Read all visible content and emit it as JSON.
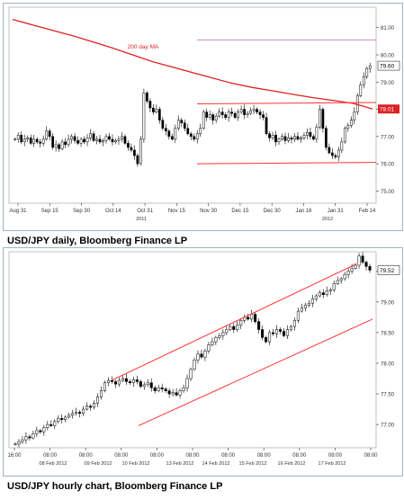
{
  "captions": {
    "daily": "USD/JPY daily, Bloomberg Finance LP",
    "hourly": "USD/JPY hourly chart, Bloomberg Finance LP"
  },
  "colors": {
    "candle": "#000000",
    "ma": "#dd2222",
    "trendline": "#ff3333",
    "resistance": "#cc88cc",
    "last_tag": "#dd2222",
    "frame": "#9fb2c8",
    "grid": "#cccccc"
  },
  "chart_data": [
    {
      "type": "candlestick",
      "title": "",
      "x_tick_labels": [
        "Aug 31",
        "Sep 15",
        "Sep 30",
        "Oct 14",
        "Oct 31",
        "Nov 15",
        "Nov 30",
        "Dec 15",
        "Dec 30",
        "Jan 16",
        "Jan 31",
        "Feb 14"
      ],
      "x_sublabels": [
        "2011",
        "2012"
      ],
      "y_tick_labels": [
        "75.00",
        "76.00",
        "77.00",
        "78.00",
        "79.00",
        "80.00",
        "81.00"
      ],
      "ylim": [
        74.55,
        81.75
      ],
      "last_value_label": "79.60",
      "ma_value_label": "78.01",
      "annotation": "200 day MA",
      "series": [
        {
          "name": "200 day MA",
          "x": [
            0,
            10,
            20,
            30,
            40,
            50,
            60,
            70,
            80,
            90,
            100,
            110,
            120,
            130,
            140,
            150,
            160,
            170,
            175,
            180
          ],
          "values": [
            81.3,
            81.1,
            80.9,
            80.7,
            80.48,
            80.25,
            80.0,
            79.75,
            79.55,
            79.35,
            79.15,
            78.95,
            78.8,
            78.68,
            78.55,
            78.43,
            78.33,
            78.22,
            78.12,
            78.01
          ]
        }
      ],
      "candles_close": [
        76.9,
        77.05,
        76.8,
        76.9,
        76.95,
        76.75,
        76.9,
        76.8,
        76.75,
        76.9,
        77.2,
        77.0,
        76.6,
        76.7,
        76.55,
        76.8,
        76.7,
        76.9,
        77.0,
        76.85,
        76.75,
        76.9,
        76.8,
        76.95,
        77.1,
        76.85,
        76.9,
        76.8,
        76.85,
        77.0,
        76.9,
        76.8,
        76.85,
        76.9,
        77.0,
        76.75,
        76.6,
        76.5,
        76.3,
        76.0,
        76.9,
        78.6,
        78.3,
        78.05,
        77.9,
        78.0,
        77.6,
        77.3,
        77.2,
        77.0,
        76.9,
        77.3,
        77.6,
        77.5,
        77.3,
        77.1,
        77.0,
        76.9,
        77.1,
        77.3,
        77.9,
        77.7,
        77.8,
        77.6,
        77.75,
        77.9,
        77.8,
        77.7,
        77.9,
        77.85,
        77.7,
        77.9,
        78.0,
        77.8,
        77.85,
        77.95,
        78.0,
        77.9,
        77.8,
        77.7,
        77.1,
        76.95,
        77.05,
        76.8,
        76.9,
        77.0,
        76.85,
        76.95,
        76.9,
        77.0,
        76.9,
        76.95,
        77.05,
        77.15,
        77.0,
        76.9,
        77.35,
        78.0,
        77.3,
        76.6,
        76.4,
        76.3,
        76.25,
        76.5,
        76.8,
        77.3,
        77.4,
        77.6,
        77.9,
        78.5,
        78.9,
        79.2,
        79.5,
        79.6
      ]
    },
    {
      "type": "candlestick",
      "title": "",
      "x_tick_labels": [
        "16:00",
        "08:00",
        "08:00",
        "08:00",
        "08:00",
        "08:00",
        "08:00",
        "08:00",
        "08:00",
        "08:00",
        "08:00"
      ],
      "x_sublabels": [
        "08 Feb 2012",
        "09 Feb 2012",
        "10 Feb 2012",
        "13 Feb 2012",
        "14 Feb 2012",
        "15 Feb 2012",
        "16 Feb 2012",
        "17 Feb 2012"
      ],
      "y_tick_labels": [
        "77.00",
        "77.50",
        "78.00",
        "78.50",
        "79.00",
        "79.50"
      ],
      "ylim": [
        76.62,
        79.82
      ],
      "last_value_label": "79.52",
      "candles_close": [
        76.68,
        76.72,
        76.75,
        76.8,
        76.78,
        76.85,
        76.9,
        76.88,
        76.95,
        77.0,
        76.98,
        77.05,
        77.1,
        77.08,
        77.12,
        77.15,
        77.18,
        77.2,
        77.18,
        77.25,
        77.3,
        77.28,
        77.35,
        77.45,
        77.55,
        77.68,
        77.72,
        77.7,
        77.66,
        77.72,
        77.75,
        77.7,
        77.68,
        77.73,
        77.7,
        77.62,
        77.65,
        77.68,
        77.6,
        77.55,
        77.6,
        77.58,
        77.55,
        77.5,
        77.52,
        77.48,
        77.55,
        77.6,
        77.75,
        77.9,
        78.05,
        78.15,
        78.1,
        78.2,
        78.3,
        78.35,
        78.42,
        78.45,
        78.5,
        78.55,
        78.6,
        78.55,
        78.62,
        78.7,
        78.75,
        78.72,
        78.8,
        78.68,
        78.55,
        78.42,
        78.35,
        78.5,
        78.48,
        78.55,
        78.52,
        78.45,
        78.55,
        78.6,
        78.7,
        78.85,
        78.9,
        78.95,
        78.98,
        79.05,
        79.1,
        79.15,
        79.12,
        79.18,
        79.2,
        79.3,
        79.35,
        79.38,
        79.45,
        79.5,
        79.55,
        79.6,
        79.75,
        79.65,
        79.58,
        79.52
      ]
    }
  ]
}
